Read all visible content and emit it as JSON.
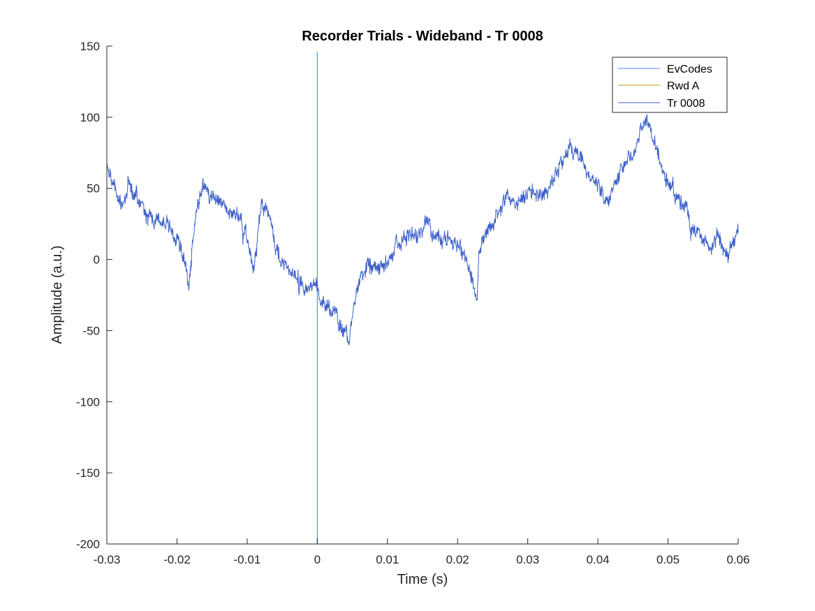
{
  "chart_data": {
    "type": "line",
    "title": "Recorder Trials - Wideband - Tr 0008",
    "xlabel": "Time (s)",
    "ylabel": "Amplitude (a.u.)",
    "xlim": [
      -0.03,
      0.06
    ],
    "ylim": [
      -200,
      150
    ],
    "xticks": [
      -0.03,
      -0.02,
      -0.01,
      0,
      0.01,
      0.02,
      0.03,
      0.04,
      0.05,
      0.06
    ],
    "xtick_labels": [
      "-0.03",
      "-0.02",
      "-0.01",
      "0",
      "0.01",
      "0.02",
      "0.03",
      "0.04",
      "0.05",
      "0.06"
    ],
    "yticks": [
      -200,
      -150,
      -100,
      -50,
      0,
      50,
      100,
      150
    ],
    "ytick_labels": [
      "-200",
      "-150",
      "-100",
      "-50",
      "0",
      "50",
      "100",
      "150"
    ],
    "grid": false,
    "legend_position": "top-right",
    "series": [
      {
        "name": "EvCodes",
        "color": "#4d8cf0",
        "kind": "vertical-marker",
        "x": [
          0,
          0
        ],
        "y": [
          -200,
          146
        ]
      },
      {
        "name": "Rwd A",
        "color": "#c09a17",
        "kind": "line",
        "x": [],
        "y": []
      },
      {
        "name": "Tr 0008",
        "color": "#3c5fc8",
        "kind": "noisy-line",
        "x": [
          -0.03,
          -0.029,
          -0.028,
          -0.027,
          -0.0265,
          -0.025,
          -0.024,
          -0.023,
          -0.022,
          -0.021,
          -0.02,
          -0.019,
          -0.0183,
          -0.0175,
          -0.0165,
          -0.0155,
          -0.015,
          -0.014,
          -0.013,
          -0.012,
          -0.011,
          -0.0105,
          -0.0095,
          -0.009,
          -0.0085,
          -0.008,
          -0.0065,
          -0.006,
          -0.005,
          -0.004,
          -0.003,
          -0.002,
          -0.001,
          0,
          0.001,
          0.002,
          0.003,
          0.004,
          0.0045,
          0.005,
          0.006,
          0.007,
          0.008,
          0.009,
          0.01,
          0.011,
          0.012,
          0.013,
          0.014,
          0.015,
          0.016,
          0.017,
          0.018,
          0.019,
          0.02,
          0.021,
          0.022,
          0.0228,
          0.023,
          0.024,
          0.025,
          0.026,
          0.027,
          0.028,
          0.029,
          0.03,
          0.031,
          0.032,
          0.033,
          0.034,
          0.035,
          0.036,
          0.0365,
          0.037,
          0.038,
          0.039,
          0.04,
          0.041,
          0.042,
          0.043,
          0.044,
          0.045,
          0.046,
          0.047,
          0.048,
          0.049,
          0.05,
          0.051,
          0.052,
          0.053,
          0.054,
          0.055,
          0.056,
          0.057,
          0.058,
          0.059,
          0.06
        ],
        "y": [
          70,
          55,
          35,
          55,
          50,
          40,
          30,
          28,
          25,
          20,
          12,
          5,
          -18,
          25,
          50,
          52,
          45,
          40,
          35,
          30,
          25,
          18,
          5,
          -5,
          15,
          40,
          30,
          15,
          0,
          -10,
          -15,
          -18,
          -20,
          -22,
          -28,
          -35,
          -45,
          -55,
          -62,
          -40,
          -10,
          -5,
          -10,
          -8,
          -2,
          8,
          12,
          15,
          18,
          20,
          22,
          18,
          15,
          12,
          10,
          5,
          -15,
          -28,
          0,
          15,
          25,
          40,
          45,
          42,
          38,
          45,
          48,
          42,
          50,
          60,
          72,
          80,
          70,
          75,
          65,
          60,
          52,
          48,
          45,
          60,
          70,
          78,
          85,
          100,
          80,
          65,
          55,
          45,
          40,
          30,
          18,
          15,
          8,
          12,
          5,
          8,
          20
        ]
      }
    ]
  }
}
